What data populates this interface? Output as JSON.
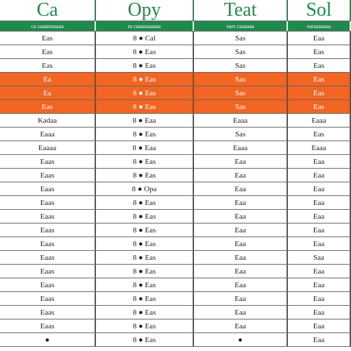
{
  "header": {
    "titles": [
      "Ca",
      "Opy",
      "Teat",
      "Sol"
    ],
    "subtitles": [
      "ca caaamaaaaa",
      "ra caaanaaaaaa",
      "ears caaaaaa",
      "earaaaaaaa"
    ]
  },
  "table": {
    "rows": [
      {
        "cells": [
          "Eas",
          "8 ● Cal",
          "Sas",
          "Eaa"
        ],
        "highlight": false
      },
      {
        "cells": [
          "Eas",
          "8 ● Eas",
          "Sas",
          "Eas"
        ],
        "highlight": false
      },
      {
        "cells": [
          "Eas",
          "8 ● Eas",
          "Sas",
          "Eas"
        ],
        "highlight": false
      },
      {
        "cells": [
          "Ea",
          "8 ● Eas",
          "Sas",
          "Eas"
        ],
        "highlight": true
      },
      {
        "cells": [
          "Ea",
          "8 ● Eas",
          "Sas",
          "Eas"
        ],
        "highlight": true
      },
      {
        "cells": [
          "Eas",
          "8 ● Eas",
          "Sas",
          "Eas"
        ],
        "highlight": true
      },
      {
        "cells": [
          "Kadaa",
          "8 ● Eaa",
          "Eaaa",
          "Eaaa"
        ],
        "highlight": false
      },
      {
        "cells": [
          "Eaaa",
          "8 ● Eas",
          "Sas",
          "Eas"
        ],
        "highlight": false
      },
      {
        "cells": [
          "Eaaaa",
          "8 ● Eaa",
          "Eaaa",
          "Eaaa"
        ],
        "highlight": false
      },
      {
        "cells": [
          "Eaas",
          "8 ● Eas",
          "Eaa",
          "Eaa"
        ],
        "highlight": false
      },
      {
        "cells": [
          "Eaas",
          "8 ● Eas",
          "Eaa",
          "Eaa"
        ],
        "highlight": false
      },
      {
        "cells": [
          "Eaas",
          "8 ● Opa",
          "Eaa",
          "Eaa"
        ],
        "highlight": false
      },
      {
        "cells": [
          "Eaas",
          "8 ● Eas",
          "Eaa",
          "Eaa"
        ],
        "highlight": false
      },
      {
        "cells": [
          "Eaas",
          "8 ● Eas",
          "Eaa",
          "Eaa"
        ],
        "highlight": false
      },
      {
        "cells": [
          "Eaas",
          "8 ● Eas",
          "Eaa",
          "Eaa"
        ],
        "highlight": false
      },
      {
        "cells": [
          "Eaas",
          "8 ● Eas",
          "Eaa",
          "Eaa"
        ],
        "highlight": false
      },
      {
        "cells": [
          "Eaas",
          "8 ● Eas",
          "Eaa",
          "Saa"
        ],
        "highlight": false
      },
      {
        "cells": [
          "Eaas",
          "8 ● Eas",
          "Eaa",
          "Eaa"
        ],
        "highlight": false
      },
      {
        "cells": [
          "Eaas",
          "8 ● Eas",
          "Eaa",
          "Eaa"
        ],
        "highlight": false
      },
      {
        "cells": [
          "Eaas",
          "8 ● Eas",
          "Eaa",
          "Eaa"
        ],
        "highlight": false
      },
      {
        "cells": [
          "Eaas",
          "8 ● Eas",
          "Eaa",
          "Eaa"
        ],
        "highlight": false
      },
      {
        "cells": [
          "Eaas",
          "8 ● Eas",
          "Eaa",
          "Eaa"
        ],
        "highlight": false
      },
      {
        "cells": [
          "●",
          "8 ● Eas",
          "●",
          "Eaa"
        ],
        "highlight": false
      }
    ]
  }
}
